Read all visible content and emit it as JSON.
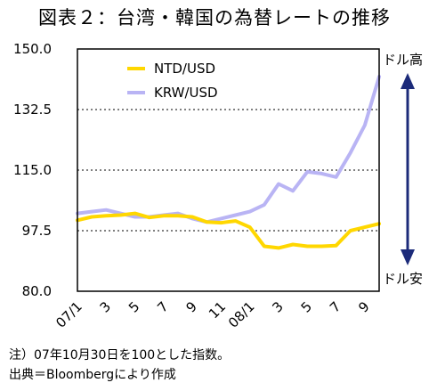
{
  "chart_data": {
    "type": "line",
    "title": "図表２：台湾・韓国の為替レートの推移",
    "note": "注）07年10月30日を100とした指数。",
    "source": "出典＝Bloombergにより作成",
    "x_tick_labels": [
      "07/1",
      "3",
      "5",
      "7",
      "9",
      "11",
      "08/1",
      "3",
      "5",
      "7",
      "9"
    ],
    "y_ticks": [
      "150.0",
      "132.5",
      "115.0",
      "97.5",
      "80.0"
    ],
    "ylim": [
      80.0,
      150.0
    ],
    "grid": "dotted horizontal",
    "legend": "top-left",
    "annotations": {
      "top": "ドル高",
      "bottom": "ドル安"
    },
    "series": [
      {
        "name": "NTD/USD",
        "color": "#ffd700",
        "x": [
          "2007-01",
          "2007-02",
          "2007-03",
          "2007-04",
          "2007-05",
          "2007-06",
          "2007-07",
          "2007-08",
          "2007-09",
          "2007-10",
          "2007-11",
          "2007-12",
          "2008-01",
          "2008-02",
          "2008-03",
          "2008-04",
          "2008-05",
          "2008-06",
          "2008-07",
          "2008-08",
          "2008-09",
          "2008-10"
        ],
        "values": [
          100.5,
          101.5,
          101.8,
          102.0,
          102.5,
          101.3,
          101.8,
          101.8,
          101.5,
          100.0,
          99.8,
          100.3,
          98.5,
          93.0,
          92.5,
          93.5,
          93.0,
          93.0,
          93.2,
          97.5,
          98.5,
          99.5
        ]
      },
      {
        "name": "KRW/USD",
        "color": "#b9b4f4",
        "x": [
          "2007-01",
          "2007-02",
          "2007-03",
          "2007-04",
          "2007-05",
          "2007-06",
          "2007-07",
          "2007-08",
          "2007-09",
          "2007-10",
          "2007-11",
          "2007-12",
          "2008-01",
          "2008-02",
          "2008-03",
          "2008-04",
          "2008-05",
          "2008-06",
          "2008-07",
          "2008-08",
          "2008-09",
          "2008-10"
        ],
        "values": [
          102.5,
          103.0,
          103.5,
          102.5,
          101.5,
          101.5,
          102.0,
          102.5,
          101.0,
          100.0,
          101.0,
          102.0,
          103.0,
          105.0,
          111.0,
          109.0,
          114.5,
          114.0,
          113.0,
          120.0,
          128.0,
          142.0
        ]
      }
    ]
  }
}
